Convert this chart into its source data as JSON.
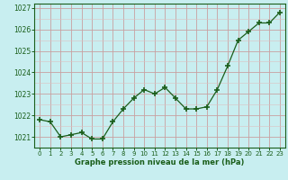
{
  "x": [
    0,
    1,
    2,
    3,
    4,
    5,
    6,
    7,
    8,
    9,
    10,
    11,
    12,
    13,
    14,
    15,
    16,
    17,
    18,
    19,
    20,
    21,
    22,
    23
  ],
  "y": [
    1021.8,
    1021.7,
    1021.0,
    1021.1,
    1021.2,
    1020.9,
    1020.9,
    1021.7,
    1022.3,
    1022.8,
    1023.2,
    1023.0,
    1023.3,
    1022.8,
    1022.3,
    1022.3,
    1022.4,
    1023.2,
    1024.3,
    1025.5,
    1025.9,
    1026.3,
    1026.3,
    1026.8
  ],
  "line_color": "#1a5e1a",
  "marker_color": "#1a5e1a",
  "bg_color": "#c8eef0",
  "grid_color_major": "#c8a0a0",
  "grid_color_minor": "#dcc0c0",
  "xlabel": "Graphe pression niveau de la mer (hPa)",
  "xlabel_color": "#1a5e1a",
  "tick_color": "#1a5e1a",
  "spine_color": "#1a5e1a",
  "ylabel_ticks": [
    1021,
    1022,
    1023,
    1024,
    1025,
    1026,
    1027
  ],
  "ylim": [
    1020.5,
    1027.2
  ],
  "xlim": [
    -0.5,
    23.5
  ],
  "xticks": [
    0,
    1,
    2,
    3,
    4,
    5,
    6,
    7,
    8,
    9,
    10,
    11,
    12,
    13,
    14,
    15,
    16,
    17,
    18,
    19,
    20,
    21,
    22,
    23
  ]
}
